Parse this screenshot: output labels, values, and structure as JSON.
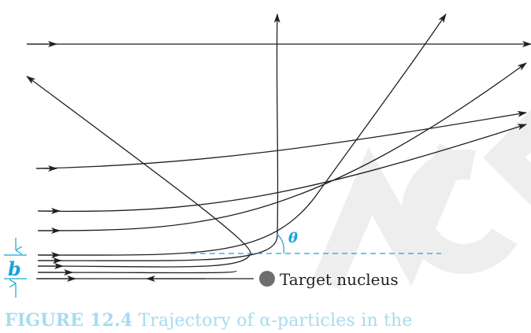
{
  "figure": {
    "target_label": "Target nucleus",
    "angle_label": "θ",
    "impact_parameter_label": "b",
    "caption_label": "FIGURE 12.4",
    "caption_text": "Trajectory of α-particles in the",
    "watermark_text": "NCERT",
    "colors": {
      "trajectory": "#231f20",
      "annotation": "#1aa3d6",
      "nucleus": "#6d6e70",
      "caption": "#a6dcf0",
      "watermark": "#eeeeee"
    }
  }
}
